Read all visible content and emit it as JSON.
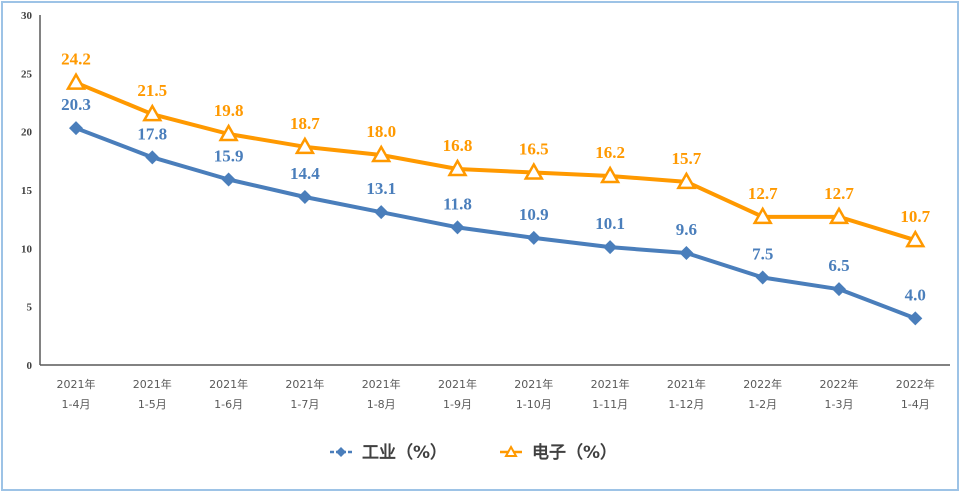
{
  "chart_data": {
    "type": "line",
    "categories": [
      [
        "2021年",
        "1-4月"
      ],
      [
        "2021年",
        "1-5月"
      ],
      [
        "2021年",
        "1-6月"
      ],
      [
        "2021年",
        "1-7月"
      ],
      [
        "2021年",
        "1-8月"
      ],
      [
        "2021年",
        "1-9月"
      ],
      [
        "2021年",
        "1-10月"
      ],
      [
        "2021年",
        "1-11月"
      ],
      [
        "2021年",
        "1-12月"
      ],
      [
        "2022年",
        "1-2月"
      ],
      [
        "2022年",
        "1-3月"
      ],
      [
        "2022年",
        "1-4月"
      ]
    ],
    "ylim": [
      0,
      30
    ],
    "yticks": [
      0,
      5,
      10,
      15,
      20,
      25,
      30
    ],
    "grid": false,
    "legend_position": "bottom",
    "series": [
      {
        "name": "工业（%）",
        "color": "#4a7ebb",
        "marker": "diamond",
        "values": [
          20.3,
          17.8,
          15.9,
          14.4,
          13.1,
          11.8,
          10.9,
          10.1,
          9.6,
          7.5,
          6.5,
          4.0
        ]
      },
      {
        "name": "电子（%）",
        "color": "#ff9900",
        "marker": "triangle",
        "values": [
          24.2,
          21.5,
          19.8,
          18.7,
          18.0,
          16.8,
          16.5,
          16.2,
          15.7,
          12.7,
          12.7,
          10.7
        ]
      }
    ]
  }
}
